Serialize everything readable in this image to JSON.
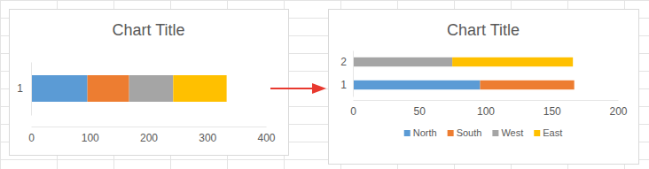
{
  "chart_data": [
    {
      "type": "bar",
      "title": "Chart Title",
      "orientation": "horizontal",
      "stacked": true,
      "grid": false,
      "categories": [
        "1"
      ],
      "series": [
        {
          "name": "North",
          "color": "#5b9bd5",
          "values": [
            96
          ]
        },
        {
          "name": "South",
          "color": "#ed7d31",
          "values": [
            71
          ]
        },
        {
          "name": "West",
          "color": "#a5a5a5",
          "values": [
            75
          ]
        },
        {
          "name": "East",
          "color": "#ffc000",
          "values": [
            91
          ]
        }
      ],
      "ylim": [
        0,
        400
      ],
      "yticks": [
        0,
        100,
        200,
        300,
        400
      ]
    },
    {
      "type": "bar",
      "title": "Chart Title",
      "orientation": "horizontal",
      "stacked": true,
      "grid": false,
      "legend": "bottom",
      "categories": [
        "1",
        "2"
      ],
      "series": [
        {
          "name": "North",
          "color": "#5b9bd5",
          "values": [
            96,
            null
          ]
        },
        {
          "name": "South",
          "color": "#ed7d31",
          "values": [
            71,
            null
          ]
        },
        {
          "name": "West",
          "color": "#a5a5a5",
          "values": [
            null,
            75
          ]
        },
        {
          "name": "East",
          "color": "#ffc000",
          "values": [
            null,
            91
          ]
        }
      ],
      "ylim": [
        0,
        200
      ],
      "yticks": [
        0,
        50,
        100,
        150,
        200
      ]
    }
  ]
}
